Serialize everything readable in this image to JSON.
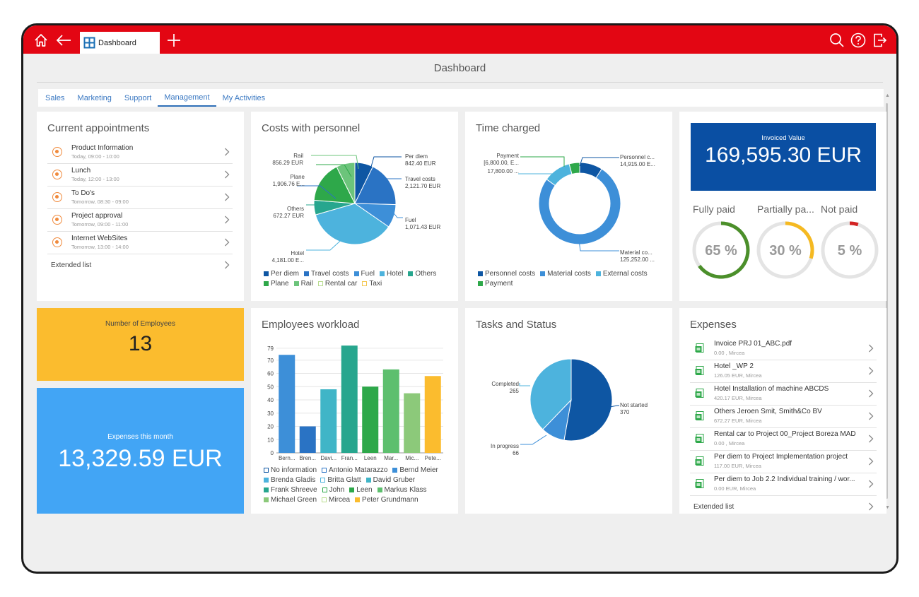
{
  "window": {
    "tab_label": "Dashboard",
    "page_title": "Dashboard"
  },
  "nav_tabs": [
    "Sales",
    "Marketing",
    "Support",
    "Management",
    "My Activities"
  ],
  "active_tab": "Management",
  "appointments": {
    "title": "Current appointments",
    "items": [
      {
        "title": "Product Information",
        "time": "Today, 09:00 - 10:00"
      },
      {
        "title": "Lunch",
        "time": "Today, 12:00 - 13:00"
      },
      {
        "title": "To Do's",
        "time": "Tomorrow, 08:30 - 09:00"
      },
      {
        "title": "Project approval",
        "time": "Tomorrow, 09:00 - 11:00"
      },
      {
        "title": "Internet WebSites",
        "time": "Tomorrow, 13:00 - 14:00"
      }
    ],
    "extended_label": "Extended list"
  },
  "costs_personnel": {
    "title": "Costs with personnel",
    "labels": [
      {
        "name": "Rail",
        "value": "856.29 EUR"
      },
      {
        "name": "Plane",
        "value": "1,906.76 E..."
      },
      {
        "name": "Others",
        "value": "672.27 EUR"
      },
      {
        "name": "Hotel",
        "value": "4,181.00 E..."
      },
      {
        "name": "Per diem",
        "value": "842.40 EUR"
      },
      {
        "name": "Travel costs",
        "value": "2,121.70 EUR"
      },
      {
        "name": "Fuel",
        "value": "1,071.43 EUR"
      }
    ],
    "legend": [
      {
        "name": "Per diem",
        "color": "#0e56a3"
      },
      {
        "name": "Travel costs",
        "color": "#2a73c4"
      },
      {
        "name": "Fuel",
        "color": "#3d8fd8"
      },
      {
        "name": "Hotel",
        "color": "#4db3dd"
      },
      {
        "name": "Others",
        "color": "#27a68e"
      },
      {
        "name": "Plane",
        "color": "#2ea84a"
      },
      {
        "name": "Rail",
        "color": "#6cc47b"
      },
      {
        "name": "Rental car",
        "color": "#b8dc8e",
        "hollow": true
      },
      {
        "name": "Taxi",
        "color": "#f4c64f",
        "hollow": true
      }
    ]
  },
  "time_charged": {
    "title": "Time charged",
    "labels": [
      {
        "name": "Payment",
        "value": "[6,800.00, E..."
      },
      {
        "name": "",
        "value": "17,800.00 ..."
      },
      {
        "name": "Personnel c...",
        "value": "14,915.00 E..."
      },
      {
        "name": "Material co...",
        "value": "125,252.00 ..."
      }
    ],
    "legend": [
      {
        "name": "Personnel costs",
        "color": "#0e56a3"
      },
      {
        "name": "Material costs",
        "color": "#3d8fd8"
      },
      {
        "name": "External costs",
        "color": "#4db3dd"
      },
      {
        "name": "Payment",
        "color": "#2ea84a"
      }
    ]
  },
  "invoiced": {
    "label": "Invoiced Value",
    "value": "169,595.30 EUR",
    "gauges": [
      {
        "label": "Fully paid",
        "value": "65 %",
        "pct": 65,
        "color": "#4b8f2a"
      },
      {
        "label": "Partially pa...",
        "value": "30 %",
        "pct": 30,
        "color": "#f5b921"
      },
      {
        "label": "Not paid",
        "value": "5 %",
        "pct": 5,
        "color": "#d32323"
      }
    ]
  },
  "employees_count": {
    "label": "Number of Employees",
    "value": "13"
  },
  "expenses_month": {
    "label": "Expenses this month",
    "value": "13,329.59 EUR"
  },
  "workload": {
    "title": "Employees workload",
    "legend": [
      {
        "name": "No information",
        "color": "#0e56a3",
        "hollow": true
      },
      {
        "name": "Antonio Matarazzo",
        "color": "#2a73c4",
        "hollow": true
      },
      {
        "name": "Bernd Meier",
        "color": "#3d8fd8"
      },
      {
        "name": "Brenda Gladis",
        "color": "#4db3dd"
      },
      {
        "name": "Britta Glatt",
        "color": "#4db3dd",
        "hollow": true
      },
      {
        "name": "David Gruber",
        "color": "#40b5c7"
      },
      {
        "name": "Frank Shreeve",
        "color": "#27a68e"
      },
      {
        "name": "John",
        "color": "#2ea84a",
        "hollow": true
      },
      {
        "name": "Leen",
        "color": "#2ea84a"
      },
      {
        "name": "Markus Klass",
        "color": "#5dbf6e"
      },
      {
        "name": "Michael Green",
        "color": "#8cc97a"
      },
      {
        "name": "Mircea",
        "color": "#b8dc8e",
        "hollow": true
      },
      {
        "name": "Peter Grundmann",
        "color": "#fbbc2e"
      }
    ]
  },
  "tasks_status": {
    "title": "Tasks and Status",
    "labels": [
      {
        "name": "Completed",
        "value": "265"
      },
      {
        "name": "Not started",
        "value": "370"
      },
      {
        "name": "In progress",
        "value": "66"
      }
    ]
  },
  "expenses": {
    "title": "Expenses",
    "items": [
      {
        "title": "Invoice PRJ 01_ABC.pdf",
        "meta": "0.00 , Mircea"
      },
      {
        "title": "Hotel _WP 2",
        "meta": "126.05 EUR, Mircea"
      },
      {
        "title": "Hotel Installation of machine ABCDS",
        "meta": "420.17 EUR, Mircea"
      },
      {
        "title": "Others Jeroen Smit, Smith&Co BV",
        "meta": "672.27 EUR, Mircea"
      },
      {
        "title": "Rental car to Project 00_Project Boreza MAD",
        "meta": "0.00 , Mircea"
      },
      {
        "title": "Per diem to Project Implementation project",
        "meta": "117.00 EUR, Mircea"
      },
      {
        "title": "Per diem to Job 2.2 Individual training / wor...",
        "meta": "0.00 EUR, Mircea"
      }
    ],
    "extended_label": "Extended list"
  },
  "chart_data": [
    {
      "type": "pie",
      "title": "Costs with personnel",
      "categories": [
        "Per diem",
        "Travel costs",
        "Fuel",
        "Hotel",
        "Others",
        "Plane",
        "Rail"
      ],
      "values": [
        842.4,
        2121.7,
        1071.43,
        4181.0,
        672.27,
        1906.76,
        856.29
      ],
      "colors": [
        "#0e56a3",
        "#2a73c4",
        "#3d8fd8",
        "#4db3dd",
        "#27a68e",
        "#2ea84a",
        "#6cc47b"
      ]
    },
    {
      "type": "pie",
      "title": "Time charged",
      "donut": true,
      "categories": [
        "Personnel costs",
        "Material costs",
        "External costs",
        "Payment"
      ],
      "values": [
        14915,
        125252,
        17800,
        6800
      ],
      "colors": [
        "#0e56a3",
        "#3d8fd8",
        "#4db3dd",
        "#2ea84a"
      ]
    },
    {
      "type": "bar",
      "title": "Employees workload",
      "categories": [
        "Bern...",
        "Bren...",
        "Davi...",
        "Fran...",
        "Leen",
        "Mar...",
        "Mic...",
        "Pete..."
      ],
      "values": [
        74,
        20,
        48,
        81,
        50,
        63,
        45,
        58
      ],
      "colors": [
        "#3d8fd8",
        "#2a73c4",
        "#40b5c7",
        "#27a68e",
        "#2ea84a",
        "#5dbf6e",
        "#8cc97a",
        "#fbbc2e"
      ],
      "ylim": [
        0,
        80
      ],
      "yticks": [
        0,
        10,
        20,
        30,
        40,
        50,
        60,
        70,
        79
      ]
    },
    {
      "type": "pie",
      "title": "Tasks and Status",
      "categories": [
        "Not started",
        "In progress",
        "Completed"
      ],
      "values": [
        370,
        66,
        265
      ],
      "colors": [
        "#0e56a3",
        "#3d8fd8",
        "#4db3dd"
      ]
    }
  ]
}
